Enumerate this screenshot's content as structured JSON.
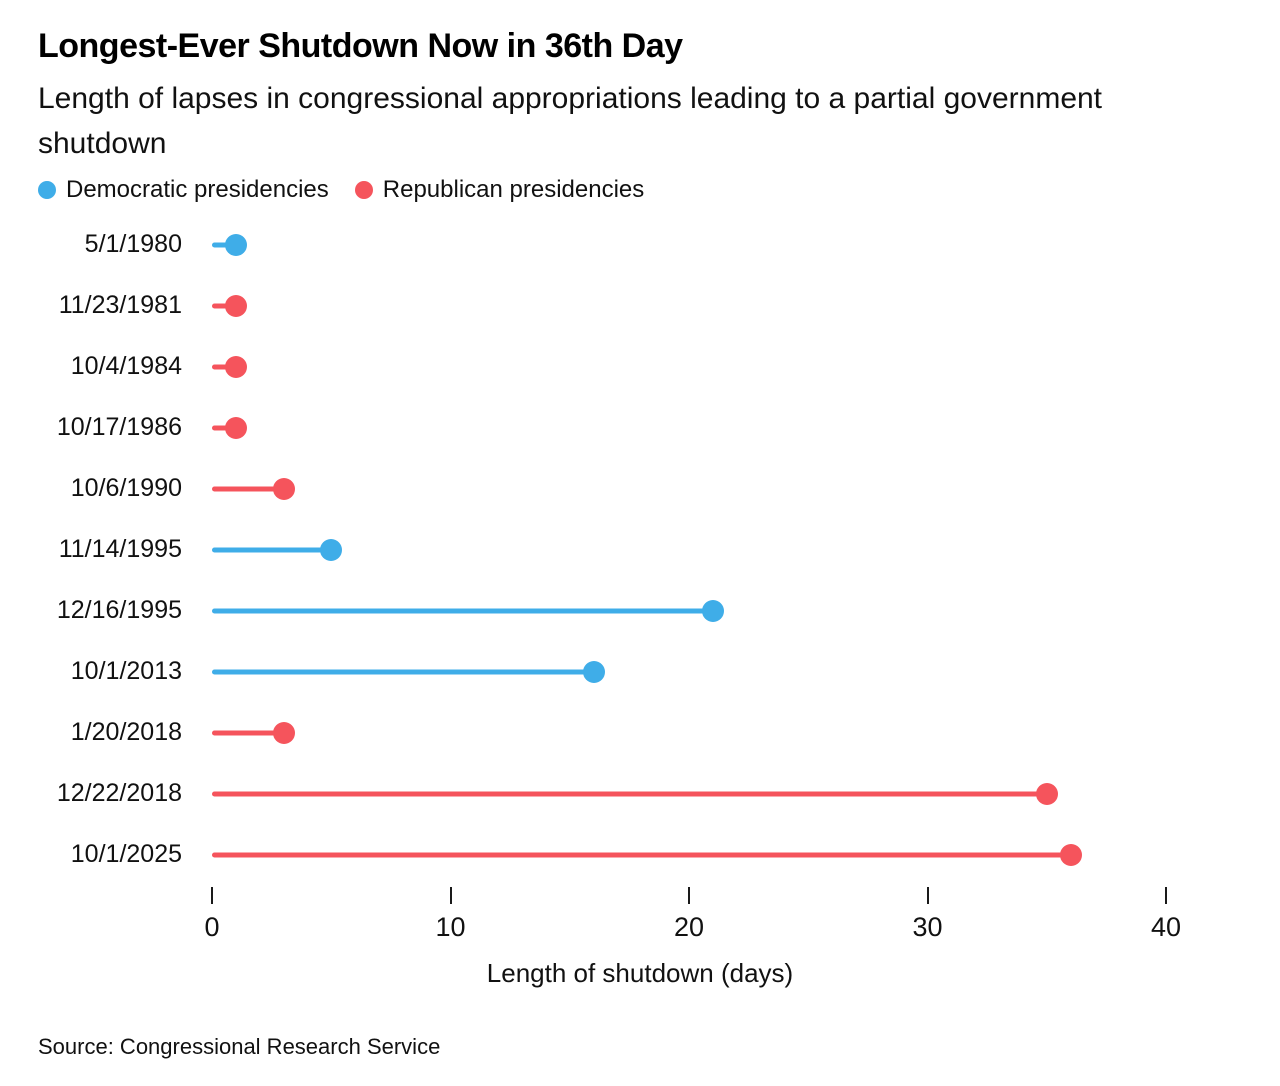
{
  "header": {
    "title": "Longest-Ever Shutdown Now in 36th Day",
    "subtitle": "Length of lapses in congressional appropriations leading to a partial government shutdown"
  },
  "legend": {
    "items": [
      {
        "label": "Democratic presidencies",
        "party": "democratic"
      },
      {
        "label": "Republican presidencies",
        "party": "republican"
      }
    ]
  },
  "colors": {
    "democratic": "#3FADE8",
    "republican": "#F5545C"
  },
  "chart_data": {
    "type": "bar",
    "variant": "lollipop",
    "orientation": "horizontal",
    "title": "Longest-Ever Shutdown Now in 36th Day",
    "subtitle": "Length of lapses in congressional appropriations leading to a partial government shutdown",
    "categories": [
      "5/1/1980",
      "11/23/1981",
      "10/4/1984",
      "10/17/1986",
      "10/6/1990",
      "11/14/1995",
      "12/16/1995",
      "10/1/2013",
      "1/20/2018",
      "12/22/2018",
      "10/1/2025"
    ],
    "values": [
      1,
      1,
      1,
      1,
      3,
      5,
      21,
      16,
      3,
      35,
      36
    ],
    "series_party": [
      "democratic",
      "republican",
      "republican",
      "republican",
      "republican",
      "democratic",
      "democratic",
      "democratic",
      "republican",
      "republican",
      "republican"
    ],
    "xlabel": "Length of shutdown (days)",
    "ylabel": "",
    "xlim": [
      0,
      42
    ],
    "xticks": [
      0,
      10,
      20,
      30,
      40
    ],
    "grid": false,
    "legend_position": "top-left"
  },
  "axis": {
    "label": "Length of shutdown (days)"
  },
  "source": "Source: Congressional Research Service"
}
